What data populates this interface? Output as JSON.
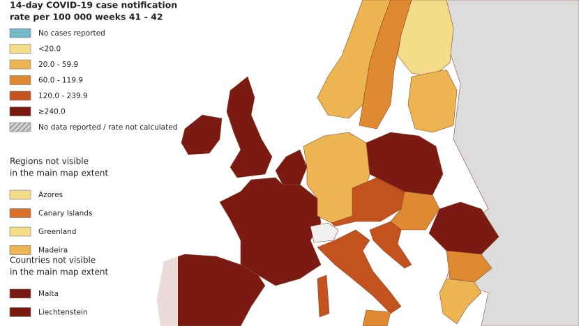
{
  "title": [
    "14-day COVID-19 case notification",
    "rate per 100 000 weeks 41 - 42"
  ],
  "legend": [
    {
      "label": "No cases reported",
      "color": "#74b9c7"
    },
    {
      "label": "<20.0",
      "color": "#f5dc88"
    },
    {
      "label": "20.0 - 59.9",
      "color": "#edb452"
    },
    {
      "label": "60.0 - 119.9",
      "color": "#df8a30"
    },
    {
      "label": "120.0 - 239.9",
      "color": "#c4521f"
    },
    {
      "label": "≥240.0",
      "color": "#7a1a12"
    },
    {
      "label": "No data reported / rate not calculated",
      "color": "#b5b5b5"
    }
  ],
  "regions": {
    "heading": [
      "Regions not visible",
      "in the main map extent"
    ],
    "items": [
      {
        "label": "Azores",
        "color": "#f5dc88"
      },
      {
        "label": "Canary Islands",
        "color": "#d8702a"
      },
      {
        "label": "Greenland",
        "color": "#f5dc88"
      },
      {
        "label": "Madeira",
        "color": "#edb452"
      }
    ]
  },
  "countries": {
    "heading": [
      "Countries not visible",
      "in the main map extent"
    ],
    "items": [
      {
        "label": "Malta",
        "color": "#7a1a12"
      },
      {
        "label": "Liechtenstein",
        "color": "#7a1a12"
      }
    ]
  }
}
